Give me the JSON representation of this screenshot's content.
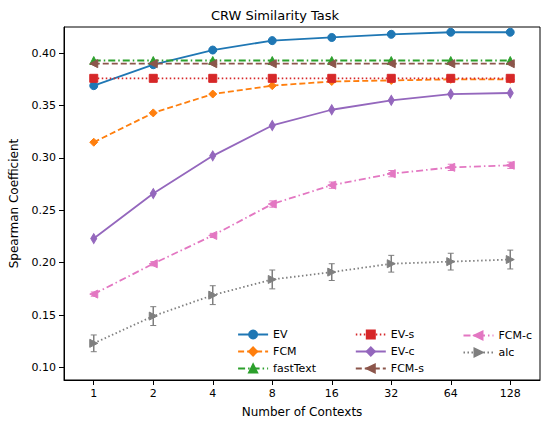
{
  "chart_data": {
    "type": "line",
    "title": "CRW Similarity Task",
    "x_label": "Number of Contexts",
    "y_label": "Spearman Coefficient",
    "categories": [
      1,
      2,
      4,
      8,
      16,
      32,
      64,
      128
    ],
    "ylim": [
      0.088,
      0.425
    ],
    "yticks": [
      {
        "value": 0.1,
        "label": "0.10"
      },
      {
        "value": 0.15,
        "label": "0.15"
      },
      {
        "value": 0.2,
        "label": "0.20"
      },
      {
        "value": 0.25,
        "label": "0.25"
      },
      {
        "value": 0.3,
        "label": "0.30"
      },
      {
        "value": 0.35,
        "label": "0.35"
      },
      {
        "value": 0.4,
        "label": "0.40"
      }
    ],
    "grid": false,
    "legend": "lower right",
    "series": [
      {
        "name": "EV",
        "color": "#1f77b4",
        "marker": "circle",
        "line_style": "solid",
        "values": [
          0.369,
          0.389,
          0.403,
          0.412,
          0.415,
          0.418,
          0.42,
          0.42
        ]
      },
      {
        "name": "FCM",
        "color": "#ff7f0e",
        "marker": "diamond",
        "line_style": "dashed",
        "values": [
          0.315,
          0.343,
          0.361,
          0.369,
          0.373,
          0.374,
          0.375,
          0.375
        ]
      },
      {
        "name": "fastText",
        "color": "#2ca02c",
        "marker": "triangle",
        "line_style": "dashdot",
        "values": [
          0.393,
          0.393,
          0.393,
          0.393,
          0.393,
          0.393,
          0.393,
          0.393
        ]
      },
      {
        "name": "EV-s",
        "color": "#d62728",
        "marker": "square",
        "line_style": "dotted",
        "values": [
          0.376,
          0.376,
          0.376,
          0.376,
          0.376,
          0.376,
          0.376,
          0.376
        ]
      },
      {
        "name": "EV-c",
        "color": "#9467bd",
        "marker": "thin_diamond",
        "line_style": "solid",
        "values": [
          0.223,
          0.266,
          0.302,
          0.331,
          0.346,
          0.355,
          0.361,
          0.362
        ]
      },
      {
        "name": "FCM-s",
        "color": "#8c564b",
        "marker": "triangle_left",
        "line_style": "dashed",
        "values": [
          0.39,
          0.39,
          0.39,
          0.39,
          0.39,
          0.39,
          0.39,
          0.39
        ]
      },
      {
        "name": "FCM-c",
        "color": "#e377c2",
        "marker": "triangle_left",
        "line_style": "dashdot",
        "values": [
          0.17,
          0.199,
          0.226,
          0.256,
          0.274,
          0.285,
          0.291,
          0.293
        ],
        "errors": [
          0.002,
          0.002,
          0.002,
          0.003,
          0.003,
          0.003,
          0.003,
          0.003
        ]
      },
      {
        "name": "alc",
        "color": "#7f7f7f",
        "marker": "triangle_right",
        "line_style": "dotted",
        "values": [
          0.123,
          0.149,
          0.169,
          0.184,
          0.191,
          0.199,
          0.201,
          0.203
        ],
        "errors": [
          0.008,
          0.009,
          0.009,
          0.009,
          0.008,
          0.008,
          0.008,
          0.009
        ]
      }
    ]
  }
}
